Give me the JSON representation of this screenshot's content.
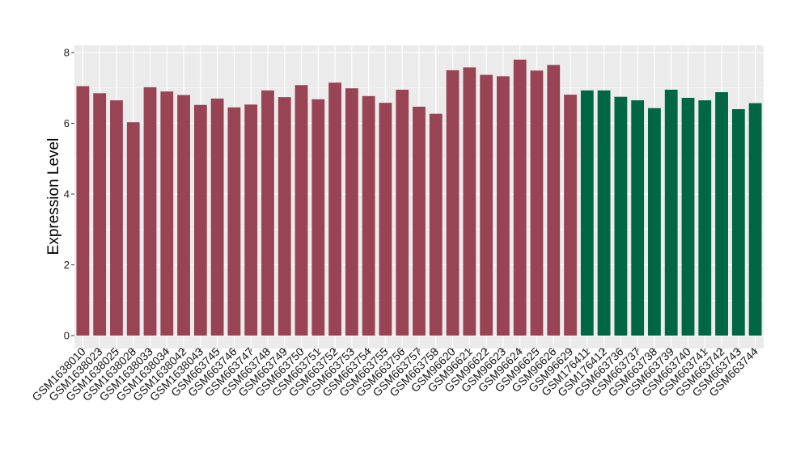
{
  "chart_data": {
    "type": "bar",
    "ylabel": "Expression Level",
    "xlabel": "",
    "ylim": [
      0,
      8
    ],
    "yticks": [
      "0",
      "2",
      "4",
      "6",
      "8"
    ],
    "grid": true,
    "colors": {
      "group1": "#994455",
      "group2": "#006644",
      "panel": "#ebebeb",
      "grid": "#ffffff"
    },
    "categories": [
      "GSM1638010",
      "GSM1638023",
      "GSM1638025",
      "GSM1638028",
      "GSM1638033",
      "GSM1638034",
      "GSM1638042",
      "GSM1638043",
      "GSM663745",
      "GSM663746",
      "GSM663747",
      "GSM663748",
      "GSM663749",
      "GSM663750",
      "GSM663751",
      "GSM663752",
      "GSM663753",
      "GSM663754",
      "GSM663755",
      "GSM663756",
      "GSM663757",
      "GSM663758",
      "GSM96620",
      "GSM96621",
      "GSM96622",
      "GSM96623",
      "GSM96624",
      "GSM96625",
      "GSM96626",
      "GSM96629",
      "GSM176411",
      "GSM176412",
      "GSM663736",
      "GSM663737",
      "GSM663738",
      "GSM663739",
      "GSM663740",
      "GSM663741",
      "GSM663742",
      "GSM663743",
      "GSM663744"
    ],
    "values": [
      7.05,
      6.85,
      6.65,
      6.03,
      7.02,
      6.9,
      6.8,
      6.52,
      6.7,
      6.45,
      6.53,
      6.93,
      6.74,
      7.08,
      6.68,
      7.15,
      6.99,
      6.77,
      6.58,
      6.95,
      6.47,
      6.27,
      7.5,
      7.58,
      7.37,
      7.33,
      7.8,
      7.49,
      7.65,
      6.81,
      6.93,
      6.93,
      6.75,
      6.65,
      6.43,
      6.95,
      6.72,
      6.65,
      6.88,
      6.4,
      6.57
    ],
    "groups": [
      1,
      1,
      1,
      1,
      1,
      1,
      1,
      1,
      1,
      1,
      1,
      1,
      1,
      1,
      1,
      1,
      1,
      1,
      1,
      1,
      1,
      1,
      1,
      1,
      1,
      1,
      1,
      1,
      1,
      1,
      2,
      2,
      2,
      2,
      2,
      2,
      2,
      2,
      2,
      2,
      2
    ]
  }
}
